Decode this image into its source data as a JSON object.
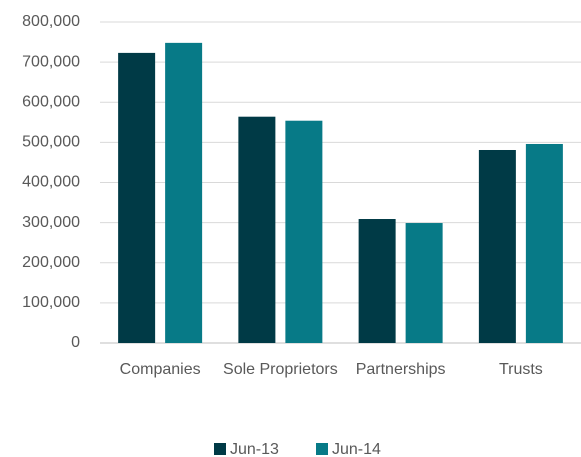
{
  "chart_data": {
    "type": "bar",
    "categories": [
      "Companies",
      "Sole Proprietors",
      "Partnerships",
      "Trusts"
    ],
    "series": [
      {
        "name": "Jun-13",
        "color": "#003a46",
        "values": [
          723000,
          564000,
          309000,
          481000
        ]
      },
      {
        "name": "Jun-14",
        "color": "#077a87",
        "values": [
          748000,
          554000,
          299000,
          496000
        ]
      }
    ],
    "ylim": [
      0,
      800000
    ],
    "yticks": [
      0,
      {
        "value": 100000,
        "label": "100,000"
      },
      {
        "value": 200000,
        "label": "200,000"
      },
      {
        "value": 300000,
        "label": "300,000"
      },
      {
        "value": 400000,
        "label": "400,000"
      },
      {
        "value": 500000,
        "label": "500,000"
      },
      {
        "value": 600000,
        "label": "600,000"
      },
      {
        "value": 700000,
        "label": "700,000"
      },
      {
        "value": 800000,
        "label": "800,000"
      }
    ],
    "grid": true,
    "legend": "bottom"
  }
}
